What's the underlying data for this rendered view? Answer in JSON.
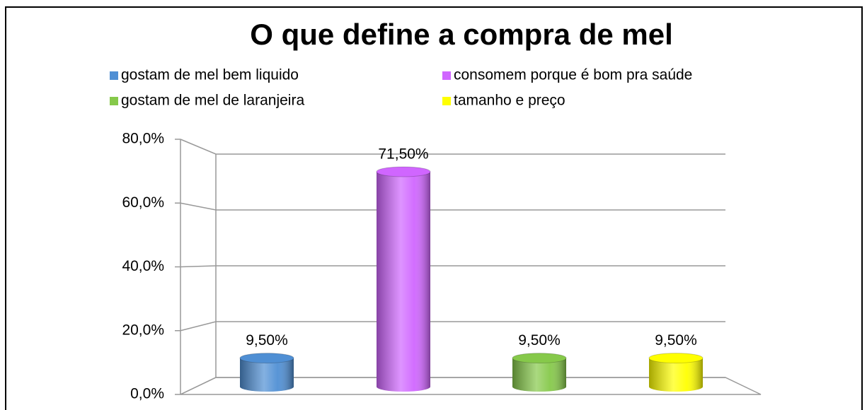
{
  "chart_data": {
    "type": "bar3d",
    "title": "O que define a compra de mel",
    "series": [
      {
        "name": "gostam de mel bem liquido",
        "color": "#4f8fd4",
        "values": [
          9.5
        ],
        "value_labels": [
          "9,50%"
        ]
      },
      {
        "name": "consomem porque é bom pra saúde",
        "color": "#d066ff",
        "values": [
          71.5
        ],
        "value_labels": [
          "71,50%"
        ]
      },
      {
        "name": "gostam de mel de laranjeira",
        "color": "#86c94a",
        "values": [
          9.5
        ],
        "value_labels": [
          "9,50%"
        ]
      },
      {
        "name": "tamanho e preço",
        "color": "#ffff00",
        "values": [
          9.5
        ],
        "value_labels": [
          "9,50%"
        ]
      }
    ],
    "ylim": [
      0,
      80
    ],
    "yticks": [
      {
        "value": 0,
        "label": "0,0%"
      },
      {
        "value": 20,
        "label": "20,0%"
      },
      {
        "value": 40,
        "label": "40,0%"
      },
      {
        "value": 60,
        "label": "60,0%"
      },
      {
        "value": 80,
        "label": "80,0%"
      }
    ],
    "grid": true,
    "legend": "top"
  }
}
